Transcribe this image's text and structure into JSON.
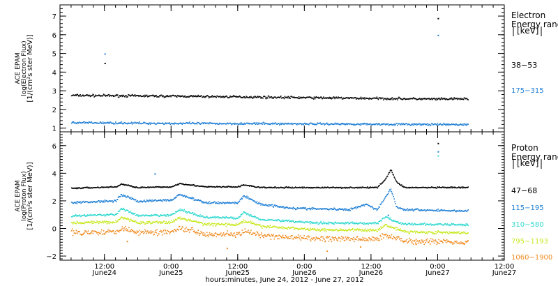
{
  "chart_data": [
    {
      "type": "scatter",
      "panel": "electron",
      "ylabel": [
        "ACE EPAM",
        "log(Electron Flux)",
        "[1/(cm²s ster MeV)]"
      ],
      "ylim": [
        0.8,
        7.6
      ],
      "yticks": [
        1,
        2,
        3,
        4,
        5,
        6,
        7
      ],
      "legend_title": [
        "Electron",
        "Energy ranges",
        "[keV]"
      ],
      "series": [
        {
          "name": "38-53",
          "color": "#000000",
          "trend": [
            [
              6,
              2.78
            ],
            [
              24,
              2.74
            ],
            [
              48,
              2.66
            ],
            [
              72,
              2.58
            ],
            [
              77.5,
              2.6
            ]
          ],
          "spread": 0.09,
          "outliers": [
            [
              12,
              4.5
            ],
            [
              72,
              6.9
            ]
          ]
        },
        {
          "name": "175-315",
          "color": "#1f7fd6",
          "trend": [
            [
              6,
              1.32
            ],
            [
              24,
              1.28
            ],
            [
              48,
              1.26
            ],
            [
              72,
              1.22
            ],
            [
              77.5,
              1.22
            ]
          ],
          "spread": 0.08,
          "outliers": [
            [
              12,
              5.0
            ],
            [
              72,
              6.0
            ]
          ]
        }
      ]
    },
    {
      "type": "scatter",
      "panel": "proton",
      "ylabel": [
        "ACE EPAM",
        "log(Proton Flux)",
        "[1/(cm²s ster MeV)]"
      ],
      "ylim": [
        -2.3,
        7.0
      ],
      "yticks": [
        -2,
        0,
        2,
        4,
        6
      ],
      "legend_title": [
        "Proton",
        "Energy ranges",
        "[keV]"
      ],
      "series": [
        {
          "name": "47-68",
          "color": "#000000",
          "trend": [
            [
              6,
              2.95
            ],
            [
              14,
              3.05
            ],
            [
              15,
              3.25
            ],
            [
              18,
              3.0
            ],
            [
              24,
              3.05
            ],
            [
              25.5,
              3.3
            ],
            [
              30,
              3.05
            ],
            [
              36,
              3.05
            ],
            [
              37,
              3.2
            ],
            [
              40,
              3.0
            ],
            [
              50,
              3.0
            ],
            [
              61,
              3.0
            ],
            [
              62.5,
              3.6
            ],
            [
              63.5,
              4.3
            ],
            [
              64.5,
              3.4
            ],
            [
              66,
              3.0
            ],
            [
              77.5,
              3.0
            ]
          ],
          "spread": 0.07,
          "outliers": [
            [
              72,
              6.2
            ]
          ]
        },
        {
          "name": "115-195",
          "color": "#1f7fd6",
          "trend": [
            [
              6,
              1.9
            ],
            [
              14,
              2.05
            ],
            [
              15,
              2.5
            ],
            [
              18,
              2.0
            ],
            [
              24,
              2.1
            ],
            [
              25.5,
              2.5
            ],
            [
              30,
              1.9
            ],
            [
              36,
              1.9
            ],
            [
              37,
              2.4
            ],
            [
              40,
              1.8
            ],
            [
              46,
              1.5
            ],
            [
              56,
              1.4
            ],
            [
              59,
              1.8
            ],
            [
              61,
              1.4
            ],
            [
              62.5,
              2.3
            ],
            [
              63.5,
              2.9
            ],
            [
              64.5,
              1.6
            ],
            [
              66,
              1.4
            ],
            [
              77.5,
              1.3
            ]
          ],
          "spread": 0.12,
          "outliers": [
            [
              72,
              5.6
            ],
            [
              21,
              4.0
            ],
            [
              63,
              1.0
            ]
          ]
        },
        {
          "name": "310-580",
          "color": "#2dd8cf",
          "trend": [
            [
              6,
              0.95
            ],
            [
              14,
              1.05
            ],
            [
              15,
              1.5
            ],
            [
              18,
              0.95
            ],
            [
              24,
              1.0
            ],
            [
              25.5,
              1.4
            ],
            [
              30,
              0.85
            ],
            [
              36,
              0.8
            ],
            [
              37,
              1.2
            ],
            [
              40,
              0.7
            ],
            [
              50,
              0.45
            ],
            [
              61,
              0.4
            ],
            [
              62.5,
              0.9
            ],
            [
              64.5,
              0.5
            ],
            [
              66,
              0.35
            ],
            [
              77.5,
              0.3
            ]
          ],
          "spread": 0.12,
          "outliers": [
            [
              72,
              5.3
            ]
          ]
        },
        {
          "name": "795-1193",
          "color": "#c6e81f",
          "trend": [
            [
              6,
              0.45
            ],
            [
              14,
              0.5
            ],
            [
              15,
              0.85
            ],
            [
              18,
              0.45
            ],
            [
              24,
              0.5
            ],
            [
              25.5,
              0.8
            ],
            [
              30,
              0.35
            ],
            [
              36,
              0.3
            ],
            [
              37,
              0.6
            ],
            [
              40,
              0.2
            ],
            [
              50,
              -0.05
            ],
            [
              61,
              -0.1
            ],
            [
              62.5,
              0.3
            ],
            [
              66,
              -0.2
            ],
            [
              77.5,
              -0.3
            ]
          ],
          "spread": 0.15,
          "outliers": []
        },
        {
          "name": "1060-1900",
          "color": "#f08a1e",
          "trend": [
            [
              6,
              -0.25
            ],
            [
              14,
              -0.2
            ],
            [
              15,
              0.1
            ],
            [
              18,
              -0.25
            ],
            [
              24,
              -0.2
            ],
            [
              25.5,
              0.1
            ],
            [
              30,
              -0.35
            ],
            [
              36,
              -0.4
            ],
            [
              37,
              -0.15
            ],
            [
              40,
              -0.5
            ],
            [
              50,
              -0.7
            ],
            [
              61,
              -0.75
            ],
            [
              62.5,
              -0.4
            ],
            [
              66,
              -0.85
            ],
            [
              77.5,
              -0.95
            ]
          ],
          "spread": 0.3,
          "outliers": [
            [
              16,
              -0.9
            ],
            [
              34,
              -1.4
            ],
            [
              52,
              -1.6
            ],
            [
              58,
              -1.3
            ],
            [
              68,
              -1.1
            ]
          ]
        }
      ]
    }
  ],
  "x_axis": {
    "xlim": [
      4,
      84
    ],
    "data_range": [
      6,
      77.5
    ],
    "unit": "hours since June24 0:00",
    "ticks": [
      {
        "x": 12,
        "time": "12:00",
        "date": "June24"
      },
      {
        "x": 24,
        "time": "0:00",
        "date": "June25"
      },
      {
        "x": 36,
        "time": "12:00",
        "date": "June25"
      },
      {
        "x": 48,
        "time": "0:00",
        "date": "June26"
      },
      {
        "x": 60,
        "time": "12:00",
        "date": "June26"
      },
      {
        "x": 72,
        "time": "0:00",
        "date": "June27"
      },
      {
        "x": 84,
        "time": "12:00",
        "date": "June27"
      }
    ],
    "label": "hours:minutes, June 24, 2012 - June 27, 2012"
  }
}
